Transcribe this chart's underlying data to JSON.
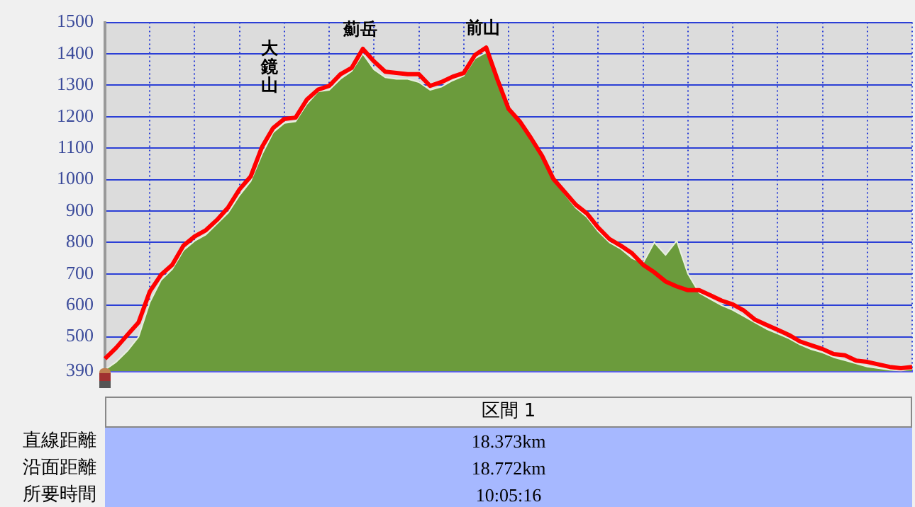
{
  "chart_data": {
    "type": "area",
    "categories": [
      null,
      null,
      null,
      null,
      null,
      null,
      null,
      null,
      null,
      null,
      null,
      null,
      null,
      null,
      null,
      null,
      null,
      null,
      null,
      null,
      null,
      null,
      null,
      null,
      null,
      null,
      null,
      null,
      null,
      null,
      null,
      null,
      null,
      null,
      null,
      null,
      null,
      null,
      null,
      null,
      null,
      null,
      null,
      null,
      null,
      null,
      null,
      null,
      null,
      null,
      null,
      null,
      null,
      null,
      null,
      null,
      null,
      null,
      null,
      null,
      null,
      null,
      null,
      null,
      null,
      null,
      null,
      null,
      null,
      null,
      null,
      null,
      null
    ],
    "series": [
      {
        "color": "#6b9b3c",
        "values": [
          395,
          420,
          455,
          500,
          610,
          680,
          715,
          775,
          805,
          825,
          860,
          895,
          950,
          995,
          1080,
          1150,
          1180,
          1185,
          1240,
          1280,
          1285,
          1320,
          1345,
          1400,
          1350,
          1325,
          1320,
          1320,
          1310,
          1285,
          1295,
          1315,
          1330,
          1385,
          1405,
          1330,
          1230,
          1190,
          1135,
          1075,
          1000,
          955,
          910,
          880,
          835,
          800,
          780,
          750,
          735,
          800,
          760,
          805,
          700,
          640,
          620,
          600,
          585,
          565,
          545,
          525,
          510,
          495,
          475,
          460,
          450,
          435,
          425,
          415,
          405,
          400,
          395,
          392,
          398
        ]
      },
      {
        "type": "line",
        "color": "#ff0000",
        "values": [
          430,
          465,
          506,
          546,
          644,
          697,
          729,
          790,
          819,
          839,
          872,
          912,
          969,
          1010,
          1103,
          1164,
          1193,
          1197,
          1254,
          1286,
          1298,
          1335,
          1355,
          1416,
          1376,
          1343,
          1339,
          1335,
          1335,
          1298,
          1310,
          1327,
          1339,
          1396,
          1420,
          1319,
          1225,
          1185,
          1132,
          1075,
          1002,
          961,
          920,
          892,
          847,
          811,
          790,
          766,
          729,
          705,
          676,
          660,
          648,
          648,
          632,
          615,
          603,
          583,
          554,
          538,
          522,
          506,
          485,
          473,
          461,
          445,
          441,
          424,
          420,
          412,
          404,
          400,
          404
        ]
      }
    ],
    "ylim": [
      390,
      1500
    ],
    "yticks": [
      390,
      500,
      600,
      700,
      800,
      900,
      1000,
      1100,
      1200,
      1300,
      1400,
      1500
    ],
    "grid": true,
    "legend": false,
    "marker": "none",
    "tick_labels": "y",
    "annotations": [
      "大鏡山",
      {
        "text": "薊岳",
        "y": 1416
      },
      {
        "text": "前山",
        "y": 1420
      },
      "区間 1",
      "直線距離",
      "18.373km",
      "沿面距離",
      "18.772km",
      "所要時間",
      "10:05:16"
    ]
  }
}
